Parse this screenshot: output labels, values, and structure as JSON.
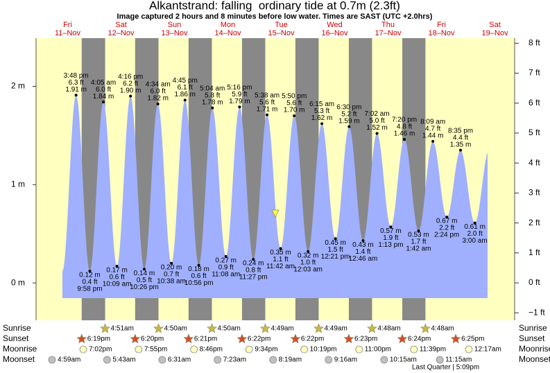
{
  "header": {
    "title": "Alkantstrand: falling  ordinary tide at 0.7m (2.3ft)",
    "subtitle": "Image captured 2 hours and 8 minutes before low water. Times are SAST (UTC +2.0hrs)"
  },
  "chart_data": {
    "type": "area",
    "weekdays": [
      "Fri",
      "Sat",
      "Sun",
      "Mon",
      "Tue",
      "Wed",
      "Thu",
      "Fri",
      "Sat"
    ],
    "categories": [
      "11–Nov",
      "12–Nov",
      "13–Nov",
      "14–Nov",
      "15–Nov",
      "16–Nov",
      "17–Nov",
      "18–Nov",
      "19–Nov"
    ],
    "ylim": [
      -0.38,
      2.49
    ],
    "yticks": [
      {
        "value": 2,
        "label": "2 m"
      },
      {
        "value": 1,
        "label": "1 m"
      },
      {
        "value": 0,
        "label": "0 m"
      }
    ],
    "y2lim": [
      -1.25,
      8.17
    ],
    "y2ticks": [
      {
        "value": 8,
        "label": "8 ft"
      },
      {
        "value": 7,
        "label": "7 ft"
      },
      {
        "value": 6,
        "label": "6 ft"
      },
      {
        "value": 5,
        "label": "5 ft"
      },
      {
        "value": 4,
        "label": "4 ft"
      },
      {
        "value": 3,
        "label": "3 ft"
      },
      {
        "value": 2,
        "label": "2 ft"
      },
      {
        "value": 1,
        "label": "1 ft"
      },
      {
        "value": 0,
        "label": "0 ft"
      },
      {
        "value": -1,
        "label": "−1 ft"
      }
    ],
    "color": "#a0b0ff",
    "tides": {
      "days": [
        "11–Nov",
        "11–Nov",
        "12–Nov",
        "12–Nov",
        "12–Nov",
        "12–Nov",
        "13–Nov",
        "13–Nov",
        "13–Nov",
        "13–Nov",
        "14–Nov",
        "14–Nov",
        "14–Nov",
        "14–Nov",
        "15–Nov",
        "15–Nov",
        "15–Nov",
        "16–Nov",
        "16–Nov",
        "16–Nov",
        "16–Nov",
        "17–Nov",
        "17–Nov",
        "17–Nov",
        "17–Nov",
        "18–Nov",
        "18–Nov",
        "18–Nov",
        "18–Nov",
        "19–Nov"
      ],
      "times": [
        "3:48 pm",
        "9:58 pm",
        "4:05 am",
        "10:09 am",
        "4:16 pm",
        "10:26 pm",
        "4:34 am",
        "10:38 am",
        "4:45 pm",
        "10:56 pm",
        "5:04 am",
        "11:08 am",
        "5:16 pm",
        "11:27 pm",
        "5:38 am",
        "11:42 am",
        "5:50 pm",
        "12:03 am",
        "6:15 am",
        "12:21 pm",
        "6:30 pm",
        "12:46 am",
        "7:02 am",
        "1:13 pm",
        "7:20 pm",
        "1:42 am",
        "8:09 am",
        "2:24 pm",
        "8:35 pm",
        "3:00 am"
      ],
      "values": [
        1.91,
        0.12,
        1.84,
        0.17,
        1.9,
        0.14,
        1.82,
        0.2,
        1.86,
        0.18,
        1.78,
        0.27,
        1.79,
        0.24,
        1.71,
        0.35,
        1.7,
        0.32,
        1.62,
        0.45,
        1.59,
        0.43,
        1.52,
        0.57,
        1.46,
        0.53,
        1.44,
        0.67,
        1.35,
        0.61
      ],
      "value_labels": [
        "1.91 m",
        "0.12 m",
        "1.84 m",
        "0.17 m",
        "1.90 m",
        "0.14 m",
        "1.82 m",
        "0.20 m",
        "1.86 m",
        "0.18 m",
        "1.78 m",
        "0.27 m",
        "1.79 m",
        "0.24 m",
        "1.71 m",
        "0.35 m",
        "1.70 m",
        "0.32 m",
        "1.62 m",
        "0.45 m",
        "1.59 m",
        "0.43 m",
        "1.52 m",
        "0.57 m",
        "1.46 m",
        "0.53 m",
        "1.44 m",
        "0.67 m",
        "1.35 m",
        "0.61 m"
      ],
      "values_ft": [
        6.3,
        0.4,
        6.0,
        0.6,
        6.2,
        0.5,
        6.0,
        0.7,
        6.1,
        0.6,
        5.8,
        0.9,
        5.9,
        0.8,
        5.6,
        1.1,
        5.6,
        1.0,
        5.3,
        1.5,
        5.2,
        1.4,
        5.0,
        1.9,
        4.8,
        1.7,
        4.7,
        2.2,
        4.4,
        2.0
      ],
      "value_labels_ft": [
        "6.3 ft",
        "0.4 ft",
        "6.0 ft",
        "0.6 ft",
        "6.2 ft",
        "0.5 ft",
        "6.0 ft",
        "0.7 ft",
        "6.1 ft",
        "0.6 ft",
        "5.8 ft",
        "0.9 ft",
        "5.9 ft",
        "0.8 ft",
        "5.6 ft",
        "1.1 ft",
        "5.6 ft",
        "1.0 ft",
        "5.3 ft",
        "1.5 ft",
        "5.2 ft",
        "1.4 ft",
        "5.0 ft",
        "1.9 ft",
        "4.8 ft",
        "1.7 ft",
        "4.7 ft",
        "2.2 ft",
        "4.4 ft",
        "2.0 ft"
      ]
    },
    "sunrise": {
      "label": "Sunrise",
      "color": "#c8b840",
      "days": [
        "12–Nov",
        "13–Nov",
        "14–Nov",
        "15–Nov",
        "16–Nov",
        "17–Nov",
        "18–Nov"
      ],
      "times": [
        "4:51am",
        "4:50am",
        "4:50am",
        "4:49am",
        "4:49am",
        "4:48am",
        "4:48am"
      ]
    },
    "sunset": {
      "label": "Sunset",
      "color": "#d0502c",
      "days": [
        "11–Nov",
        "12–Nov",
        "13–Nov",
        "14–Nov",
        "15–Nov",
        "16–Nov",
        "17–Nov",
        "18–Nov"
      ],
      "times": [
        "6:19pm",
        "6:20pm",
        "6:21pm",
        "6:22pm",
        "6:22pm",
        "6:23pm",
        "6:24pm",
        "6:25pm"
      ]
    },
    "moonrise": {
      "label": "Moonrise",
      "color": "#ffffc0",
      "days": [
        "11–Nov",
        "12–Nov",
        "13–Nov",
        "14–Nov",
        "15–Nov",
        "16–Nov",
        "17–Nov",
        "19–Nov"
      ],
      "times": [
        "7:02pm",
        "7:55pm",
        "8:46pm",
        "9:34pm",
        "10:19pm",
        "11:00pm",
        "11:39pm",
        "12:17am"
      ]
    },
    "moonset": {
      "label": "Moonset",
      "color": "#c0c0c0",
      "days": [
        "11–Nov",
        "12–Nov",
        "13–Nov",
        "14–Nov",
        "15–Nov",
        "16–Nov",
        "17–Nov",
        "18–Nov"
      ],
      "times": [
        "4:59am",
        "5:43am",
        "6:31am",
        "7:23am",
        "8:19am",
        "9:16am",
        "10:15am",
        "11:15am"
      ]
    },
    "moon_phase": "Last Quarter | 5:09pm"
  }
}
